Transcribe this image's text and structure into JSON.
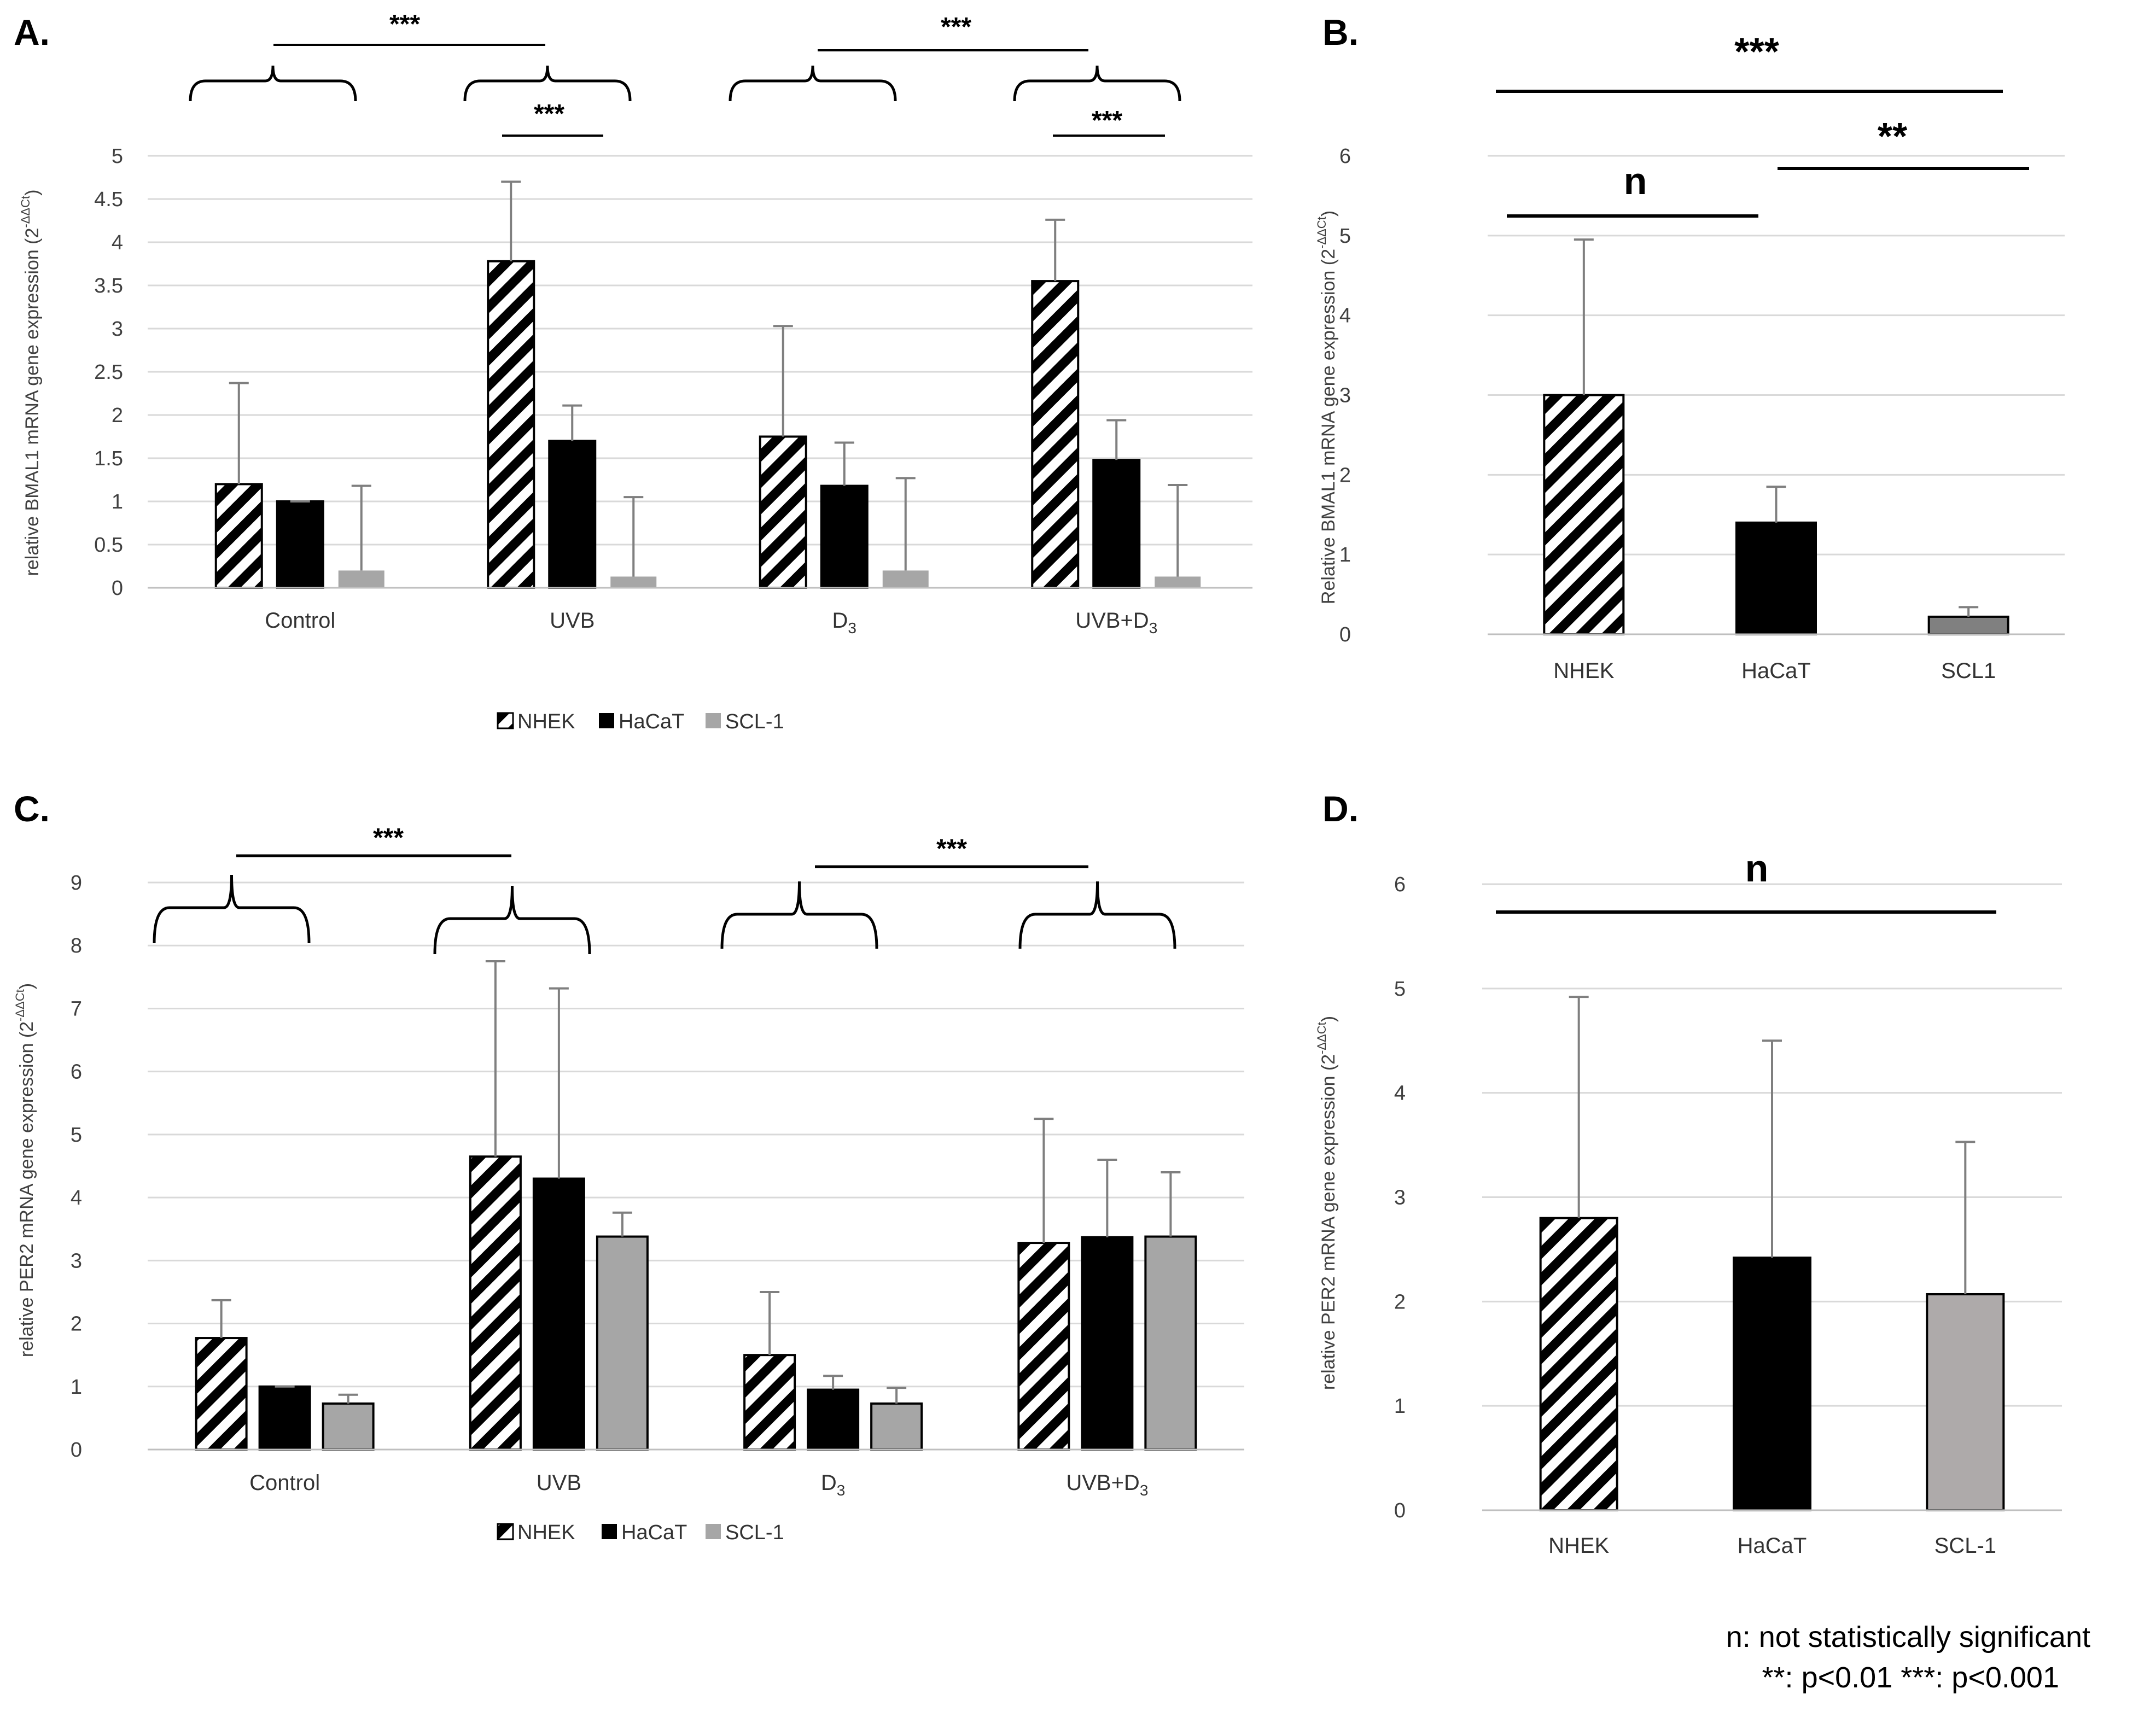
{
  "colors": {
    "nhek": "hatched-black-white",
    "hacat": "#000000",
    "scl1_A": "#a6a6a6",
    "scl1_B": "#808080",
    "scl1_C": "#a6a6a6",
    "scl1_D": "#aeaaaa",
    "error_bar": "#7f7f7f",
    "grid": "#d9d9d9"
  },
  "footnote": {
    "line1": "n: not statistically significant",
    "line2": "**: p<0.01 ***: p<0.001"
  },
  "chart_data": [
    {
      "panel": "A.",
      "type": "bar",
      "ylabel": "relative BMAL1 mRNA gene expression (2",
      "ylabel_sup": "-ΔΔCt",
      "ylabel_end": ")",
      "ylim": [
        0,
        5
      ],
      "yticks": [
        "0",
        "0.5",
        "1",
        "1.5",
        "2",
        "2.5",
        "3",
        "3.5",
        "4",
        "4.5",
        "5"
      ],
      "categories": [
        "Control",
        "UVB",
        "D",
        "UVB+D"
      ],
      "category_subscripts": [
        "",
        "",
        "3",
        "3"
      ],
      "series": [
        {
          "name": "NHEK",
          "values": [
            1.2,
            3.78,
            1.75,
            3.55
          ],
          "errors": [
            1.17,
            0.92,
            1.28,
            0.71
          ]
        },
        {
          "name": "HaCaT",
          "values": [
            1.0,
            1.7,
            1.18,
            1.48
          ],
          "errors": [
            0.0,
            0.41,
            0.5,
            0.46
          ]
        },
        {
          "name": "SCL-1",
          "values": [
            0.2,
            0.13,
            0.2,
            0.13
          ],
          "errors": [
            0.98,
            0.92,
            1.07,
            1.06
          ]
        }
      ],
      "legend_position": "bottom",
      "grid": true,
      "significance": [
        "***",
        "***",
        "***",
        "***"
      ]
    },
    {
      "panel": "B.",
      "type": "bar",
      "ylabel": "Relative BMAL1 mRNA gene expression (2",
      "ylabel_sup": "-ΔΔCt",
      "ylabel_end": ")",
      "ylim": [
        0,
        6
      ],
      "yticks": [
        "0",
        "1",
        "2",
        "3",
        "4",
        "5",
        "6"
      ],
      "categories": [
        "NHEK",
        "HaCaT",
        "SCL1"
      ],
      "values": [
        3.0,
        1.4,
        0.22
      ],
      "errors": [
        1.95,
        0.45,
        0.12
      ],
      "grid": true,
      "significance": [
        "***",
        "n",
        "**"
      ]
    },
    {
      "panel": "C.",
      "type": "bar",
      "ylabel": "relative PER2 mRNA gene expression (2",
      "ylabel_sup": "-ΔΔCt",
      "ylabel_end": ")",
      "ylim": [
        0,
        9
      ],
      "yticks": [
        "0",
        "1",
        "2",
        "3",
        "4",
        "5",
        "6",
        "7",
        "8",
        "9"
      ],
      "categories": [
        "Control",
        "UVB",
        "D",
        "UVB+D"
      ],
      "category_subscripts": [
        "",
        "",
        "3",
        "3"
      ],
      "series": [
        {
          "name": "NHEK",
          "values": [
            1.77,
            4.65,
            1.5,
            3.28
          ],
          "errors": [
            0.6,
            3.1,
            1.0,
            1.97
          ]
        },
        {
          "name": "HaCaT",
          "values": [
            1.0,
            4.3,
            0.95,
            3.37
          ],
          "errors": [
            0.0,
            3.02,
            0.22,
            1.23
          ]
        },
        {
          "name": "SCL-1",
          "values": [
            0.73,
            3.38,
            0.73,
            3.38
          ],
          "errors": [
            0.14,
            0.38,
            0.25,
            1.02
          ]
        }
      ],
      "legend_position": "bottom",
      "grid": true,
      "significance": [
        "***",
        "***"
      ]
    },
    {
      "panel": "D.",
      "type": "bar",
      "ylabel": "relative PER2 mRNA gene expression (2",
      "ylabel_sup": "-ΔΔCt",
      "ylabel_end": ")",
      "ylim": [
        0,
        6
      ],
      "yticks": [
        "0",
        "1",
        "2",
        "3",
        "4",
        "5",
        "6"
      ],
      "categories": [
        "NHEK",
        "HaCaT",
        "SCL-1"
      ],
      "values": [
        2.8,
        2.42,
        2.07
      ],
      "errors": [
        2.12,
        2.08,
        1.46
      ],
      "grid": true,
      "significance": [
        "n"
      ]
    }
  ]
}
